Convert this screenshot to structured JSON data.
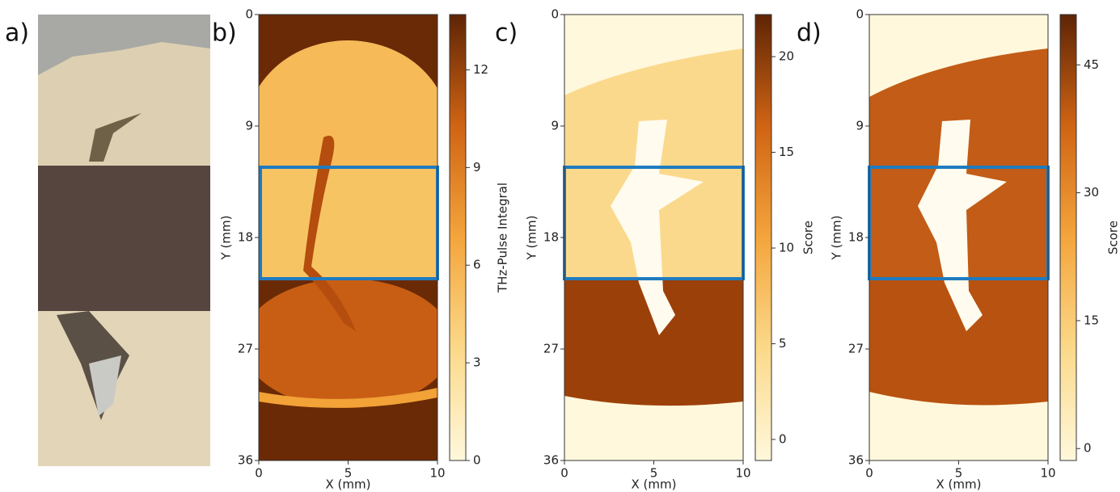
{
  "photo_label": "a)",
  "chart_data": [
    {
      "type": "heatmap",
      "title": "b)",
      "xlabel": "X (mm)",
      "ylabel": "Y (mm)",
      "xlim": [
        0,
        10
      ],
      "ylim": [
        0,
        36
      ],
      "y_inverted": true,
      "xticks": [
        0,
        5,
        10
      ],
      "yticks": [
        0,
        9,
        18,
        27,
        36
      ],
      "colorbar": {
        "label": "THz-Pulse Integral",
        "lim": [
          0,
          13.7
        ],
        "ticks": [
          0,
          3,
          6,
          9,
          12
        ]
      }
    },
    {
      "type": "heatmap",
      "title": "c)",
      "xlabel": "X (mm)",
      "ylabel": "Y (mm)",
      "xlim": [
        0,
        10
      ],
      "ylim": [
        0,
        36
      ],
      "y_inverted": true,
      "xticks": [
        0,
        5,
        10
      ],
      "yticks": [
        0,
        9,
        18,
        27,
        36
      ],
      "colorbar": {
        "label": "Score",
        "lim": [
          -1.1,
          22.2
        ],
        "ticks": [
          0,
          5,
          10,
          15,
          20
        ]
      }
    },
    {
      "type": "heatmap",
      "title": "d)",
      "xlabel": "X (mm)",
      "ylabel": "Y (mm)",
      "xlim": [
        0,
        10
      ],
      "ylim": [
        0,
        36
      ],
      "y_inverted": true,
      "xticks": [
        0,
        5,
        10
      ],
      "yticks": [
        0,
        9,
        18,
        27,
        36
      ],
      "colorbar": {
        "label": "Score",
        "lim": [
          -1.4,
          50.9
        ],
        "ticks": [
          0,
          15,
          30,
          45
        ]
      }
    }
  ]
}
